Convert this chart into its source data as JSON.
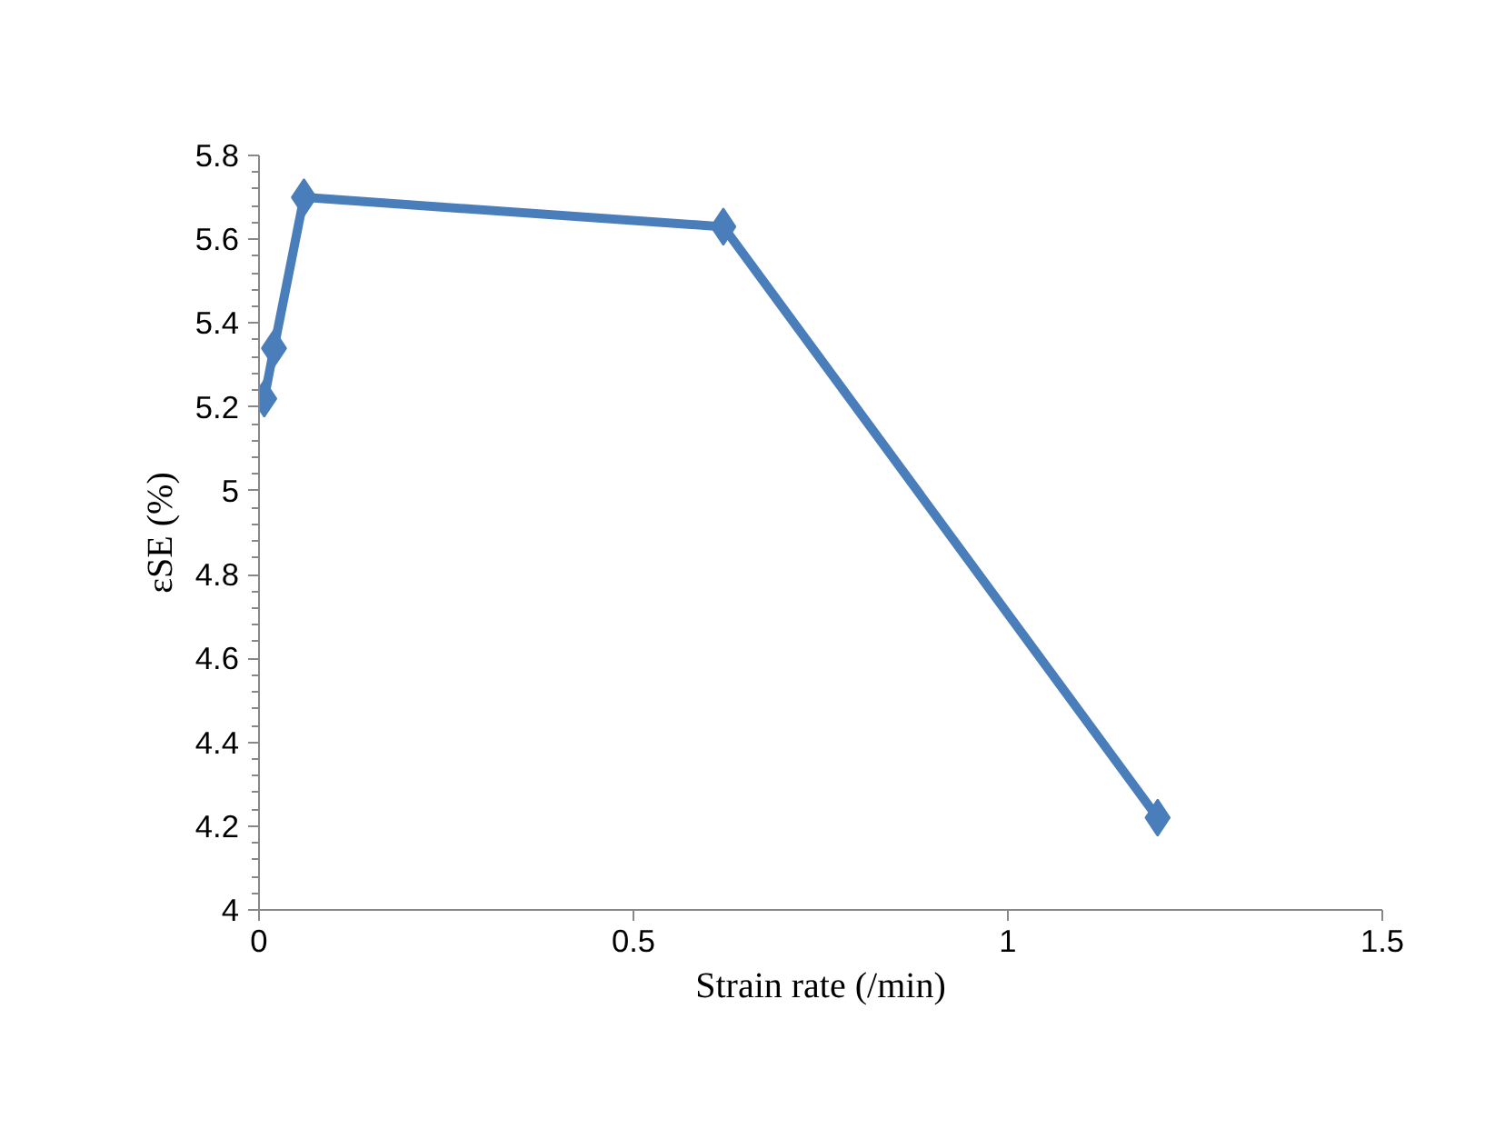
{
  "chart_data": {
    "type": "line",
    "xlabel": "Strain rate (/min)",
    "ylabel": "εSE (%)",
    "x": [
      0.007,
      0.02,
      0.06,
      0.62,
      1.2
    ],
    "series": [
      {
        "color": "#4a7ebb",
        "values": [
          5.22,
          5.34,
          5.7,
          5.63,
          4.22
        ]
      }
    ],
    "xlim": [
      0,
      1.5
    ],
    "xticks": [
      0,
      0.5,
      1,
      1.5
    ],
    "ylim": [
      4,
      5.8
    ],
    "yticks": [
      4,
      4.2,
      4.4,
      4.6,
      4.8,
      5,
      5.2,
      5.4,
      5.6,
      5.8
    ],
    "marker": "diamond",
    "line_style": "solid"
  }
}
